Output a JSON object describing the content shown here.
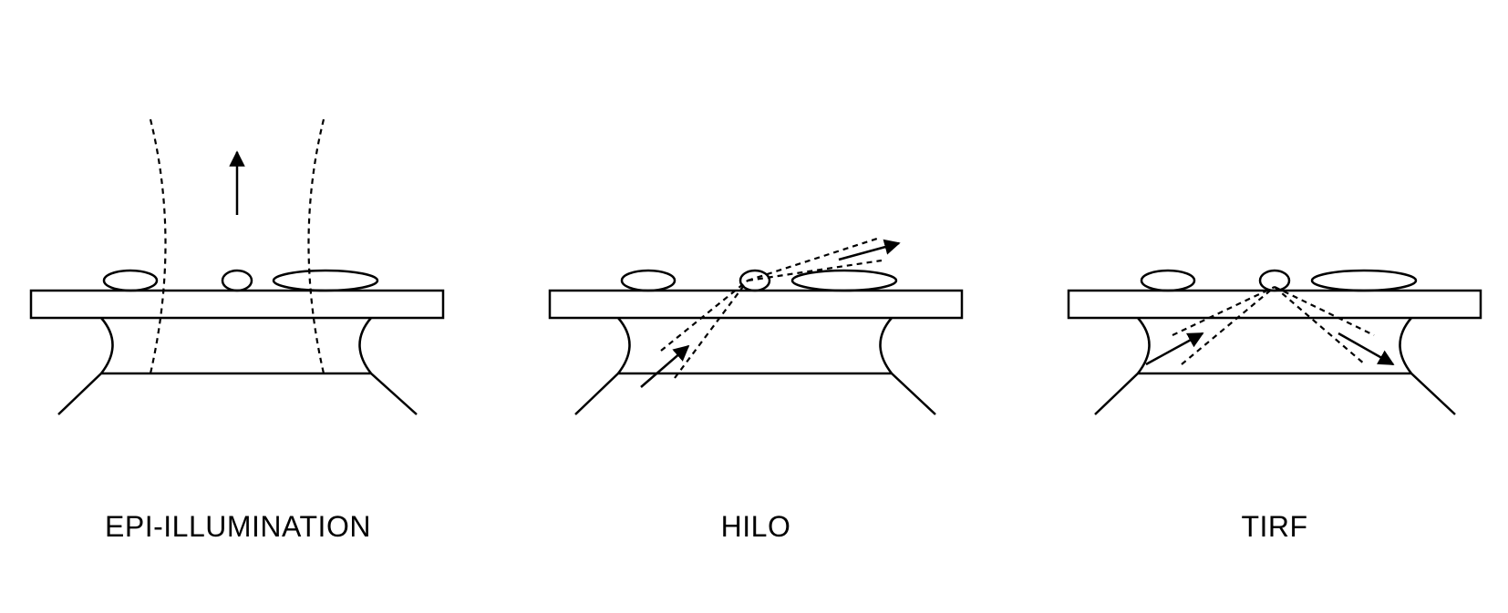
{
  "panels": [
    {
      "label": "EPI-ILLUMINATION"
    },
    {
      "label": "HILO"
    },
    {
      "label": "TIRF"
    }
  ],
  "colors": {
    "stroke": "#000000",
    "background": "#ffffff"
  }
}
